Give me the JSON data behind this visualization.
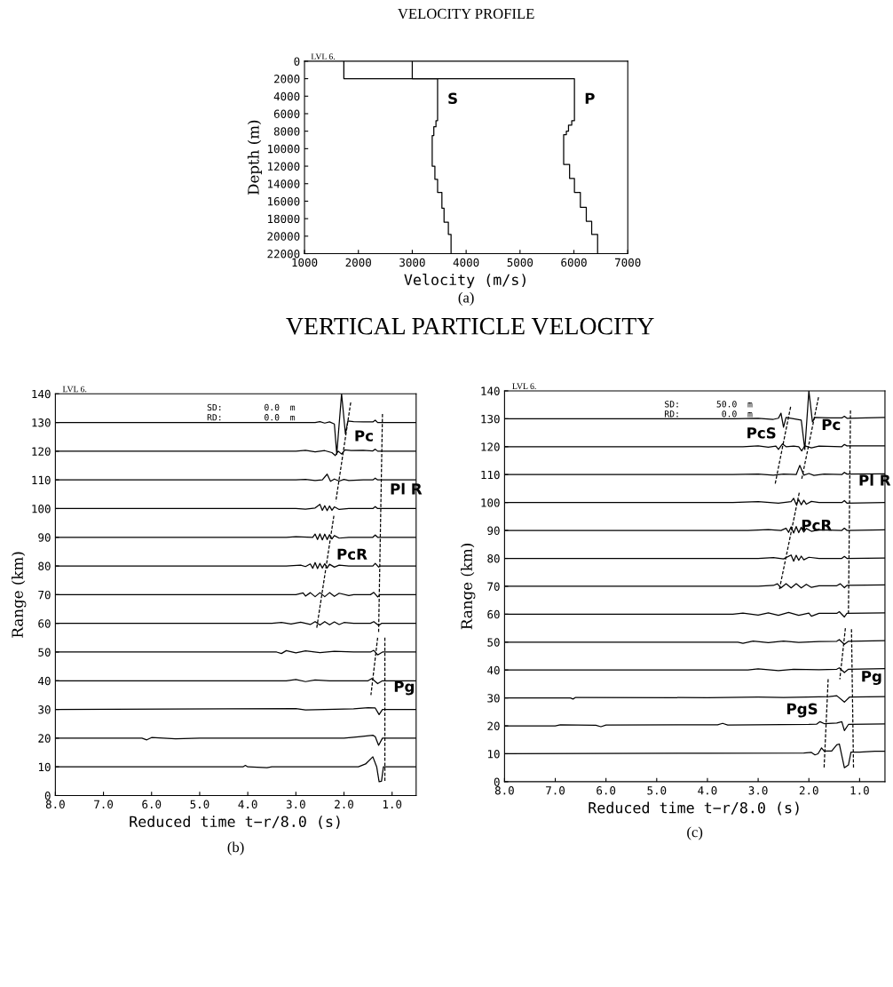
{
  "chart_data": [
    {
      "type": "line",
      "title": "VELOCITY PROFILE",
      "xlabel": "Velocity (m/s)",
      "ylabel": "Depth (m)",
      "annotations": [
        "LVL 6.",
        "(a)"
      ],
      "xlim": [
        1000,
        7000
      ],
      "ylim": [
        22000,
        0
      ],
      "xticks": [
        1000,
        2000,
        3000,
        4000,
        5000,
        6000,
        7000
      ],
      "yticks": [
        0,
        2000,
        4000,
        6000,
        8000,
        10000,
        12000,
        14000,
        16000,
        18000,
        20000,
        22000
      ],
      "series": [
        {
          "name": "S",
          "color": "#000000",
          "line_style": "solid",
          "x": [
            1730,
            1730,
            3470,
            3470,
            3440,
            3440,
            3400,
            3400,
            3370,
            3370,
            3420,
            3420,
            3470,
            3470,
            3550,
            3550,
            3590,
            3590,
            3670,
            3670,
            3720,
            3720
          ],
          "values": [
            0,
            2000,
            2000,
            6800,
            6800,
            7500,
            7500,
            8500,
            8500,
            12000,
            12000,
            13500,
            13500,
            15000,
            15000,
            16800,
            16800,
            18400,
            18400,
            19800,
            19800,
            22000
          ]
        },
        {
          "name": "P",
          "color": "#000000",
          "line_style": "solid",
          "x": [
            3000,
            3000,
            6010,
            6010,
            5960,
            5960,
            5900,
            5900,
            5860,
            5860,
            5810,
            5810,
            5920,
            5920,
            6010,
            6010,
            6120,
            6120,
            6230,
            6230,
            6330,
            6330,
            6440,
            6440
          ],
          "values": [
            0,
            2000,
            2000,
            6800,
            6800,
            7300,
            7300,
            8000,
            8000,
            8400,
            8400,
            11800,
            11800,
            13400,
            13400,
            15000,
            15000,
            16700,
            16700,
            18300,
            18300,
            19800,
            19800,
            22000
          ]
        }
      ]
    },
    {
      "type": "line",
      "title": "VERTICAL PARTICLE VELOCITY",
      "xlabel": "Reduced time t−r/8.0 (s)",
      "ylabel": "Range (km)",
      "annotations": [
        "LVL 6.",
        "SD:        0.0  m",
        "RD:        0.0  m",
        "(b)"
      ],
      "xlim": [
        8.0,
        0.5
      ],
      "ylim": [
        0,
        140
      ],
      "xticks": [
        {
          "value": 8,
          "label": "8.0"
        },
        {
          "value": 7,
          "label": "7.0"
        },
        {
          "value": 6,
          "label": "6.0"
        },
        {
          "value": 5,
          "label": "5.0"
        },
        {
          "value": 4,
          "label": "4.0"
        },
        {
          "value": 3,
          "label": "3.0"
        },
        {
          "value": 2,
          "label": "2.0"
        },
        {
          "value": 1,
          "label": "1.0"
        }
      ],
      "yticks": [
        0,
        10,
        20,
        30,
        40,
        50,
        60,
        70,
        80,
        90,
        100,
        110,
        120,
        130,
        140
      ],
      "series": [
        {
          "color": "#000000",
          "line_style": "solid",
          "x": [
            8,
            2.6,
            2.5,
            2.4,
            2.3,
            2.2,
            2.15,
            2.05,
            1.97,
            1.92,
            1.8,
            1.6,
            1.4,
            1.35,
            1.3,
            0.5
          ],
          "values": [
            130,
            130,
            130.3,
            129.8,
            130.2,
            129.5,
            119,
            140,
            126,
            130.5,
            130.3,
            130.2,
            130.2,
            130.8,
            130,
            130
          ]
        },
        {
          "color": "#000000",
          "line_style": "solid",
          "x": [
            8,
            3,
            2.8,
            2.6,
            2.4,
            2.25,
            2.18,
            2.12,
            2.05,
            1.98,
            1.85,
            1.6,
            1.4,
            1.35,
            1.3,
            0.5
          ],
          "values": [
            120,
            120,
            120.3,
            119.8,
            120.2,
            119.5,
            118.5,
            120,
            119,
            120.5,
            120.2,
            120.3,
            120.1,
            120.7,
            120,
            120
          ]
        },
        {
          "color": "#000000",
          "line_style": "solid",
          "x": [
            8,
            3,
            2.8,
            2.6,
            2.45,
            2.35,
            2.28,
            2.2,
            2.1,
            2.0,
            1.9,
            1.6,
            1.4,
            1.35,
            1.3,
            0.5
          ],
          "values": [
            110,
            110,
            110.2,
            109.8,
            110,
            112,
            109.5,
            110.3,
            109.6,
            110.2,
            109.8,
            110,
            110,
            110.6,
            110,
            110
          ]
        },
        {
          "color": "#000000",
          "line_style": "solid",
          "x": [
            8,
            3.0,
            2.8,
            2.6,
            2.5,
            2.45,
            2.4,
            2.35,
            2.3,
            2.25,
            2.2,
            2.1,
            1.9,
            1.4,
            1.35,
            1.3,
            0.5
          ],
          "values": [
            100,
            100,
            99.8,
            100.2,
            101.5,
            99.4,
            101,
            99.3,
            100.9,
            99.4,
            100.6,
            99.7,
            100,
            100,
            100.7,
            100,
            100
          ]
        },
        {
          "color": "#000000",
          "line_style": "solid",
          "x": [
            8,
            3.2,
            3,
            2.65,
            2.6,
            2.55,
            2.5,
            2.45,
            2.4,
            2.35,
            2.3,
            2.25,
            2.2,
            2.1,
            1.9,
            1.4,
            1.35,
            1.3,
            0.5
          ],
          "values": [
            90,
            90,
            90.2,
            90,
            91.1,
            89.2,
            91.2,
            89.1,
            91.1,
            89.2,
            90.9,
            89.4,
            90.6,
            89.7,
            90,
            90,
            90.8,
            90,
            90
          ]
        },
        {
          "color": "#000000",
          "line_style": "solid",
          "x": [
            8,
            3.2,
            2.9,
            2.8,
            2.7,
            2.65,
            2.6,
            2.55,
            2.5,
            2.45,
            2.4,
            2.35,
            2.3,
            2.2,
            2.1,
            1.9,
            1.4,
            1.35,
            1.28,
            1.25,
            0.5
          ],
          "values": [
            80,
            80,
            80.3,
            79.8,
            80.7,
            79.2,
            81.2,
            79.1,
            80.9,
            79.3,
            80.8,
            79.3,
            80.6,
            79.6,
            80.3,
            80,
            80,
            80.9,
            79.6,
            80,
            80
          ]
        },
        {
          "color": "#000000",
          "line_style": "solid",
          "x": [
            8,
            3.0,
            2.85,
            2.8,
            2.7,
            2.6,
            2.5,
            2.4,
            2.3,
            2.2,
            2.1,
            1.9,
            1.8,
            1.45,
            1.38,
            1.3,
            1.25,
            0.5
          ],
          "values": [
            70,
            70,
            70.6,
            69.5,
            70.7,
            69.3,
            70.7,
            69.3,
            70.7,
            69.4,
            70.5,
            69.7,
            70,
            70,
            70.8,
            69.2,
            70,
            70
          ]
        },
        {
          "color": "#000000",
          "line_style": "solid",
          "x": [
            8,
            3.5,
            3.3,
            3.1,
            2.9,
            2.7,
            2.6,
            2.5,
            2.4,
            2.3,
            2.2,
            2.1,
            2.0,
            1.8,
            1.45,
            1.38,
            1.28,
            1.22,
            0.5
          ],
          "values": [
            60,
            60,
            60.3,
            59.8,
            60.4,
            59.6,
            60.6,
            59.4,
            60.6,
            59.5,
            60.5,
            59.6,
            60.3,
            60,
            60,
            60.6,
            59.3,
            60,
            60
          ]
        },
        {
          "color": "#000000",
          "line_style": "solid",
          "x": [
            8,
            3.4,
            3.3,
            3.2,
            3.0,
            2.8,
            2.5,
            2.2,
            1.8,
            1.45,
            1.38,
            1.3,
            1.2,
            0.5
          ],
          "values": [
            50,
            50,
            49.5,
            50.5,
            49.7,
            50.4,
            49.8,
            50.3,
            50,
            50,
            50.6,
            49,
            50,
            50
          ]
        },
        {
          "color": "#000000",
          "line_style": "solid",
          "x": [
            8,
            3.2,
            3.0,
            2.8,
            2.6,
            2.3,
            1.5,
            1.42,
            1.3,
            1.2,
            0.5
          ],
          "values": [
            40,
            40,
            40.4,
            39.7,
            40.3,
            40,
            40,
            40.8,
            39,
            40,
            40
          ]
        },
        {
          "color": "#000000",
          "line_style": "solid",
          "x": [
            8,
            3.0,
            2.8,
            2.4,
            1.8,
            1.5,
            1.35,
            1.27,
            1.2,
            0.5
          ],
          "values": [
            30,
            30.3,
            29.8,
            30,
            30.2,
            30.6,
            30.5,
            28.2,
            30,
            30
          ]
        },
        {
          "color": "#000000",
          "line_style": "solid",
          "x": [
            8,
            6.2,
            6.1,
            6.0,
            5.5,
            5,
            2,
            1.7,
            1.4,
            1.35,
            1.28,
            1.2,
            0.5
          ],
          "values": [
            20,
            20,
            19.4,
            20.2,
            19.8,
            20,
            20,
            20.5,
            21,
            20.5,
            17.5,
            20,
            20
          ]
        },
        {
          "color": "#000000",
          "line_style": "solid",
          "x": [
            8,
            4.1,
            4.05,
            4.0,
            3.6,
            3.5,
            1.7,
            1.55,
            1.4,
            1.32,
            1.27,
            1.22,
            1.18,
            0.5
          ],
          "values": [
            10,
            10,
            10.5,
            10,
            9.7,
            10,
            10,
            11,
            13.5,
            10,
            4.8,
            5,
            10,
            10
          ]
        },
        {
          "name": "Pc",
          "color": "#000000",
          "line_style": "dashed",
          "x": [
            1.86,
            2.17
          ],
          "values": [
            137,
            102.5
          ]
        },
        {
          "name": "PcR",
          "color": "#000000",
          "line_style": "dashed",
          "x": [
            2.21,
            2.57
          ],
          "values": [
            97.5,
            58
          ]
        },
        {
          "name": "Pl R",
          "color": "#000000",
          "line_style": "dashed",
          "x": [
            1.2,
            1.28
          ],
          "values": [
            133,
            57
          ]
        },
        {
          "color": "#000000",
          "line_style": "dashed",
          "x": [
            1.3,
            1.44
          ],
          "values": [
            55,
            35
          ]
        },
        {
          "name": "Pg",
          "color": "#000000",
          "line_style": "dashed",
          "x": [
            1.15,
            1.15
          ],
          "values": [
            55,
            5
          ]
        }
      ]
    },
    {
      "type": "line",
      "xlabel": "Reduced time t−r/8.0 (s)",
      "ylabel": "Range (km)",
      "annotations": [
        "LVL 6.",
        "SD:       50.0  m",
        "RD:        0.0  m",
        "(c)"
      ],
      "xlim": [
        8.0,
        0.5
      ],
      "ylim": [
        0,
        140
      ],
      "xticks": [
        {
          "value": 8,
          "label": "8.0"
        },
        {
          "value": 7,
          "label": "7.0"
        },
        {
          "value": 6,
          "label": "6.0"
        },
        {
          "value": 5,
          "label": "5.0"
        },
        {
          "value": 4,
          "label": "4.0"
        },
        {
          "value": 3,
          "label": "3.0"
        },
        {
          "value": 2,
          "label": "2.0"
        },
        {
          "value": 1,
          "label": "1.0"
        }
      ],
      "yticks": [
        0,
        10,
        20,
        30,
        40,
        50,
        60,
        70,
        80,
        90,
        100,
        110,
        120,
        130,
        140
      ],
      "series": [
        {
          "color": "#000000",
          "line_style": "solid",
          "x": [
            8,
            3.5,
            3.0,
            2.7,
            2.6,
            2.55,
            2.5,
            2.45,
            2.3,
            2.15,
            2.08,
            2.0,
            1.93,
            1.88,
            1.6,
            1.35,
            1.3,
            1.25,
            0.5
          ],
          "values": [
            130,
            130,
            130.2,
            129.8,
            130.2,
            132,
            127,
            130.5,
            130,
            129.5,
            119,
            140,
            128.9,
            130.5,
            130.3,
            130.3,
            130.9,
            130.2,
            130.5
          ]
        },
        {
          "color": "#000000",
          "line_style": "solid",
          "x": [
            8,
            3.3,
            3.0,
            2.8,
            2.65,
            2.6,
            2.52,
            2.45,
            2.3,
            2.2,
            2.14,
            2.08,
            1.95,
            1.8,
            1.35,
            1.3,
            1.25,
            0.5
          ],
          "values": [
            120,
            120,
            120.3,
            119.8,
            120.2,
            119,
            121,
            120,
            120.2,
            120,
            118.5,
            120.3,
            119.6,
            120.2,
            120,
            120.8,
            120.3,
            120.3
          ]
        },
        {
          "color": "#000000",
          "line_style": "solid",
          "x": [
            8,
            3.5,
            3.0,
            2.7,
            2.5,
            2.25,
            2.18,
            2.1,
            2.0,
            1.9,
            1.7,
            1.35,
            1.3,
            1.25,
            0.5
          ],
          "values": [
            110,
            110,
            110.2,
            109.8,
            110.2,
            110,
            113.3,
            109.8,
            110.4,
            109.7,
            110.2,
            110,
            110.8,
            110.2,
            110.3
          ]
        },
        {
          "color": "#000000",
          "line_style": "solid",
          "x": [
            8,
            3.5,
            3.0,
            2.6,
            2.35,
            2.3,
            2.25,
            2.2,
            2.15,
            2.1,
            2.05,
            1.95,
            1.8,
            1.35,
            1.3,
            1.25,
            0.5
          ],
          "values": [
            100,
            100,
            100.3,
            99.8,
            100.3,
            101.5,
            99.3,
            101,
            99.2,
            100.8,
            99.4,
            100.4,
            100,
            100,
            100.7,
            99.8,
            100
          ]
        },
        {
          "color": "#000000",
          "line_style": "solid",
          "x": [
            8,
            3.2,
            2.8,
            2.55,
            2.45,
            2.4,
            2.35,
            2.3,
            2.25,
            2.2,
            2.15,
            2.1,
            2.05,
            1.95,
            1.8,
            1.35,
            1.3,
            1.25,
            0.5
          ],
          "values": [
            90,
            90,
            90.3,
            90,
            90.8,
            89.3,
            91.3,
            89.1,
            91.4,
            89.2,
            91.1,
            89.4,
            90.7,
            89.7,
            90.2,
            90,
            90.8,
            90,
            90.2
          ]
        },
        {
          "color": "#000000",
          "line_style": "solid",
          "x": [
            8,
            3.0,
            2.7,
            2.5,
            2.35,
            2.3,
            2.25,
            2.2,
            2.15,
            2.1,
            2.0,
            1.8,
            1.35,
            1.3,
            1.25,
            0.5
          ],
          "values": [
            80,
            80,
            80.3,
            79.8,
            81.2,
            79,
            81.1,
            79.3,
            80.8,
            79.5,
            80.4,
            80,
            80,
            80.7,
            80,
            80.1
          ]
        },
        {
          "color": "#000000",
          "line_style": "solid",
          "x": [
            8,
            3.0,
            2.7,
            2.62,
            2.55,
            2.45,
            2.35,
            2.25,
            2.15,
            2.05,
            1.95,
            1.8,
            1.45,
            1.38,
            1.3,
            1.25,
            0.5
          ],
          "values": [
            70,
            70,
            70.3,
            70.9,
            69.4,
            70.9,
            69.4,
            70.9,
            69.4,
            70.7,
            69.6,
            70.2,
            70.2,
            70.9,
            69.5,
            70.3,
            70.5
          ]
        },
        {
          "color": "#000000",
          "line_style": "solid",
          "x": [
            8,
            3.5,
            3.3,
            3.0,
            2.8,
            2.6,
            2.4,
            2.2,
            2.0,
            1.95,
            1.8,
            1.45,
            1.4,
            1.3,
            1.25,
            0.5
          ],
          "values": [
            60,
            60,
            60.4,
            59.7,
            60.5,
            59.6,
            60.6,
            59.6,
            60.4,
            59.3,
            60.3,
            60.3,
            60.9,
            59,
            60.3,
            60.5
          ]
        },
        {
          "color": "#000000",
          "line_style": "solid",
          "x": [
            8,
            3.4,
            3.3,
            3.1,
            2.8,
            2.5,
            2.2,
            1.8,
            1.45,
            1.4,
            1.3,
            1.22,
            0.5
          ],
          "values": [
            50,
            50,
            49.6,
            50.4,
            49.8,
            50.4,
            49.9,
            50.2,
            50.3,
            50.9,
            49.2,
            50.3,
            50.5
          ]
        },
        {
          "color": "#000000",
          "line_style": "solid",
          "x": [
            8,
            3.2,
            3.0,
            2.6,
            2.3,
            1.8,
            1.45,
            1.4,
            1.3,
            1.22,
            0.5
          ],
          "values": [
            40,
            40,
            40.4,
            39.8,
            40.3,
            40.1,
            40.3,
            40.8,
            39.1,
            40.3,
            40.5
          ]
        },
        {
          "color": "#000000",
          "line_style": "solid",
          "x": [
            8,
            6.7,
            6.65,
            6.6,
            4,
            3,
            2.5,
            1.8,
            1.6,
            1.45,
            1.3,
            1.2,
            0.5
          ],
          "values": [
            30,
            30,
            29.6,
            30.2,
            30.1,
            30.3,
            30.2,
            30.4,
            30.5,
            30.8,
            28.5,
            30.3,
            30.5
          ]
        },
        {
          "color": "#000000",
          "line_style": "solid",
          "x": [
            8,
            7,
            6.9,
            6.2,
            6.1,
            6.0,
            3.8,
            3.7,
            3.6,
            2.0,
            1.85,
            1.78,
            1.7,
            1.45,
            1.35,
            1.3,
            1.22,
            0.5
          ],
          "values": [
            20,
            20,
            20.4,
            20.2,
            19.7,
            20.3,
            20.4,
            20.9,
            20.3,
            20.5,
            20.6,
            21.5,
            20.8,
            21,
            21.5,
            18.3,
            20.5,
            20.7
          ]
        },
        {
          "color": "#000000",
          "line_style": "solid",
          "x": [
            8,
            4,
            2.1,
            1.95,
            1.88,
            1.82,
            1.75,
            1.7,
            1.55,
            1.45,
            1.4,
            1.3,
            1.22,
            1.17,
            1.0,
            0.7,
            0.5
          ],
          "values": [
            10,
            10.2,
            10.3,
            10.5,
            9.6,
            10,
            12.1,
            11,
            11,
            13.2,
            13.5,
            5,
            6,
            10.6,
            10.6,
            10.9,
            10.9
          ]
        },
        {
          "name": "PcS",
          "color": "#000000",
          "line_style": "dashed",
          "x": [
            2.36,
            2.67
          ],
          "values": [
            134.3,
            106.2
          ]
        },
        {
          "name": "Pc",
          "color": "#000000",
          "line_style": "dashed",
          "x": [
            1.81,
            2.14
          ],
          "values": [
            137.7,
            108.5
          ]
        },
        {
          "name": "PcR",
          "color": "#000000",
          "line_style": "dashed",
          "x": [
            2.19,
            2.58
          ],
          "values": [
            103.5,
            69
          ]
        },
        {
          "name": "Pl R",
          "color": "#000000",
          "line_style": "dashed",
          "x": [
            1.18,
            1.22
          ],
          "values": [
            133,
            60.2
          ]
        },
        {
          "color": "#000000",
          "line_style": "dashed",
          "x": [
            1.28,
            1.39
          ],
          "values": [
            55,
            36.7
          ]
        },
        {
          "name": "Pg",
          "color": "#000000",
          "line_style": "dashed",
          "x": [
            1.16,
            1.12
          ],
          "values": [
            54.6,
            5
          ]
        },
        {
          "name": "PgS",
          "color": "#000000",
          "line_style": "dashed",
          "x": [
            1.62,
            1.7
          ],
          "values": [
            36.7,
            5
          ]
        }
      ]
    }
  ]
}
